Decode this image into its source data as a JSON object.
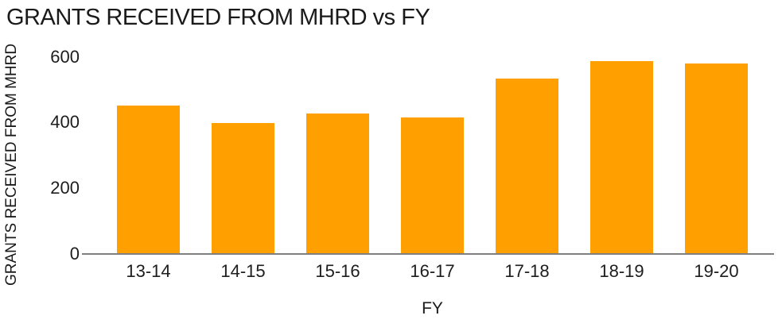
{
  "chart_data": {
    "type": "bar",
    "title": "GRANTS RECEIVED FROM MHRD vs FY",
    "xlabel": "FY",
    "ylabel": "GRANTS RECEIVED FROM MHRD",
    "categories": [
      "13-14",
      "14-15",
      "15-16",
      "16-17",
      "17-18",
      "18-19",
      "19-20"
    ],
    "values": [
      450,
      396,
      425,
      413,
      532,
      585,
      578
    ],
    "ylim": [
      0,
      600
    ],
    "yticks": [
      0,
      200,
      400,
      600
    ],
    "grid": false,
    "legend": false,
    "colors": {
      "bar": "#FFA000",
      "axis_line": "#7f7f7f",
      "text": "#1d1d1d"
    }
  }
}
